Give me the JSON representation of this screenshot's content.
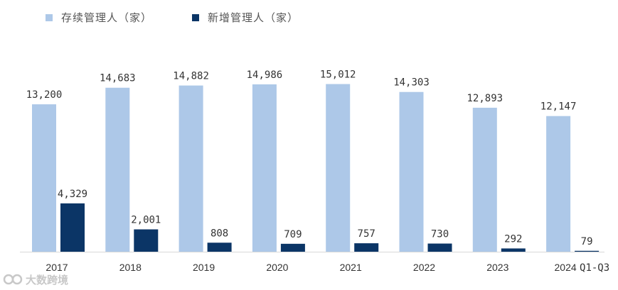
{
  "chart_data": {
    "type": "bar",
    "categories": [
      "2017",
      "2018",
      "2019",
      "2020",
      "2021",
      "2022",
      "2023",
      "2024 Q1-Q3"
    ],
    "series": [
      {
        "name": "存续管理人（家）",
        "color": "#adc8e8",
        "values": [
          13200,
          14683,
          14882,
          14986,
          15012,
          14303,
          12893,
          12147
        ],
        "labels": [
          "13,200",
          "14,683",
          "14,882",
          "14,986",
          "15,012",
          "14,303",
          "12,893",
          "12,147"
        ]
      },
      {
        "name": "新增管理人（家）",
        "color": "#0b3566",
        "values": [
          4329,
          2001,
          808,
          709,
          757,
          730,
          292,
          79
        ],
        "labels": [
          "4,329",
          "2,001",
          "808",
          "709",
          "757",
          "730",
          "292",
          "79"
        ]
      }
    ],
    "ylim": [
      0,
      16000
    ],
    "legend": "top-left",
    "grid": false
  },
  "watermark": {
    "text": "大数跨境",
    "icon": "brand-logo-icon"
  }
}
